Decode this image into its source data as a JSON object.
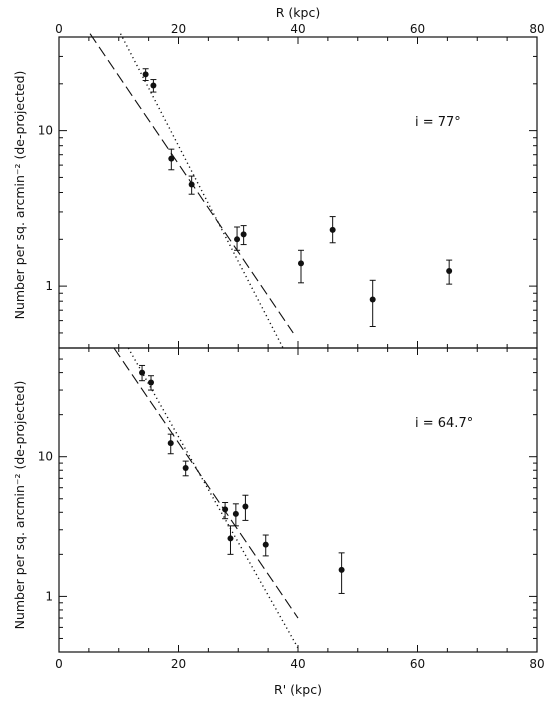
{
  "chart_data": [
    {
      "type": "scatter",
      "panel": "top",
      "xlabel": "R (kpc)",
      "xlabel_position": "top",
      "ylabel": "Number per sq. arcmin⁻² (de-projected)",
      "x_ticks": [
        "0",
        "20",
        "40",
        "60",
        "80"
      ],
      "y_ticks": [
        "1",
        "10"
      ],
      "xlim": [
        0,
        80
      ],
      "ylim": [
        0.4,
        40
      ],
      "yscale": "log",
      "annotation": "i = 77°",
      "points": [
        {
          "x": 14.5,
          "y": 23.0,
          "err_low": 2.0,
          "err_high": 2.0
        },
        {
          "x": 15.8,
          "y": 19.5,
          "err_low": 1.8,
          "err_high": 1.8
        },
        {
          "x": 18.8,
          "y": 6.6,
          "err_low": 1.0,
          "err_high": 1.0
        },
        {
          "x": 22.2,
          "y": 4.5,
          "err_low": 0.6,
          "err_high": 0.6
        },
        {
          "x": 29.8,
          "y": 2.0,
          "err_low": 0.3,
          "err_high": 0.4
        },
        {
          "x": 30.9,
          "y": 2.15,
          "err_low": 0.3,
          "err_high": 0.3
        },
        {
          "x": 40.5,
          "y": 1.4,
          "err_low": 0.35,
          "err_high": 0.3
        },
        {
          "x": 45.8,
          "y": 2.3,
          "err_low": 0.4,
          "err_high": 0.5
        },
        {
          "x": 52.5,
          "y": 0.82,
          "err_low": 0.27,
          "err_high": 0.27
        },
        {
          "x": 65.3,
          "y": 1.25,
          "err_low": 0.22,
          "err_high": 0.22
        }
      ],
      "lines": [
        {
          "style": "dashed",
          "x": [
            5.2,
            39.2
          ],
          "y": [
            42,
            0.5
          ]
        },
        {
          "style": "dotted",
          "x": [
            10.3,
            37.5
          ],
          "y": [
            42,
            0.4
          ]
        }
      ]
    },
    {
      "type": "scatter",
      "panel": "bottom",
      "xlabel": "R' (kpc)",
      "xlabel_position": "bottom",
      "ylabel": "Number per sq. arcmin⁻² (de-projected)",
      "x_ticks": [
        "0",
        "20",
        "40",
        "60",
        "80"
      ],
      "y_ticks": [
        "1",
        "10"
      ],
      "xlim": [
        0,
        80
      ],
      "ylim": [
        0.4,
        60
      ],
      "yscale": "log",
      "annotation": "i = 64.7°",
      "points": [
        {
          "x": 13.9,
          "y": 40.0,
          "err_low": 5.0,
          "err_high": 5.0
        },
        {
          "x": 15.4,
          "y": 34.0,
          "err_low": 4.0,
          "err_high": 4.0
        },
        {
          "x": 18.7,
          "y": 12.5,
          "err_low": 2.0,
          "err_high": 2.0
        },
        {
          "x": 21.2,
          "y": 8.3,
          "err_low": 1.0,
          "err_high": 1.0
        },
        {
          "x": 27.8,
          "y": 4.2,
          "err_low": 0.6,
          "err_high": 0.5
        },
        {
          "x": 28.7,
          "y": 2.6,
          "err_low": 0.6,
          "err_high": 0.6
        },
        {
          "x": 29.6,
          "y": 3.9,
          "err_low": 0.7,
          "err_high": 0.7
        },
        {
          "x": 31.2,
          "y": 4.4,
          "err_low": 0.9,
          "err_high": 0.9
        },
        {
          "x": 34.6,
          "y": 2.35,
          "err_low": 0.4,
          "err_high": 0.4
        },
        {
          "x": 47.3,
          "y": 1.55,
          "err_low": 0.5,
          "err_high": 0.5
        }
      ],
      "lines": [
        {
          "style": "dashed",
          "x": [
            9.2,
            40.0
          ],
          "y": [
            60,
            0.7
          ]
        },
        {
          "style": "dotted",
          "x": [
            11.6,
            40.1
          ],
          "y": [
            60,
            0.42
          ]
        }
      ]
    }
  ]
}
